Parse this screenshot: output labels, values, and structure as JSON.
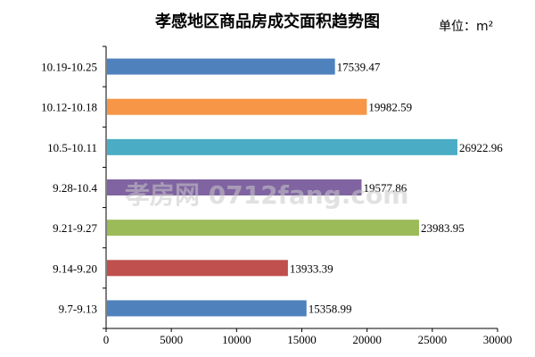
{
  "chart_data": {
    "type": "bar",
    "orientation": "horizontal",
    "title": "孝感地区商品房成交面积趋势图",
    "unit": "单位：m²",
    "categories": [
      "10.19-10.25",
      "10.12-10.18",
      "10.5-10.11",
      "9.28-10.4",
      "9.21-9.27",
      "9.14-9.20",
      "9.7-9.13"
    ],
    "values": [
      17539.47,
      19982.59,
      26922.96,
      19577.86,
      23983.95,
      13933.39,
      15358.99
    ],
    "value_labels": [
      "17539.47",
      "19982.59",
      "26922.96",
      "19577.86",
      "23983.95",
      "13933.39",
      "15358.99"
    ],
    "colors": [
      "#4f81bd",
      "#f79646",
      "#4bacc6",
      "#8064a2",
      "#9bbb59",
      "#c0504d",
      "#4f81bd"
    ],
    "xlim": [
      0,
      30000
    ],
    "xticks": [
      "0",
      "5000",
      "10000",
      "15000",
      "20000",
      "25000",
      "30000"
    ],
    "grid": false,
    "legend": "none",
    "watermark": "孝房网 0712fang.com"
  }
}
